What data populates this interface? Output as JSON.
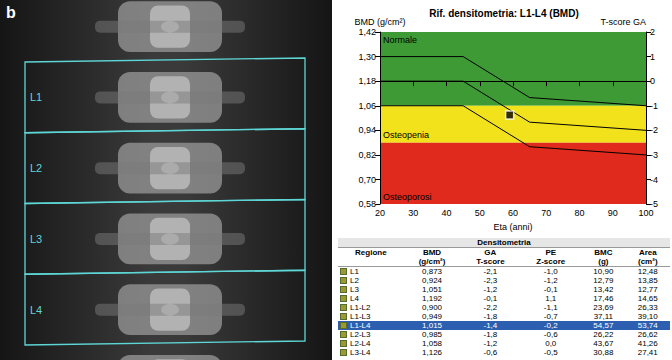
{
  "panel_label": "b",
  "xray": {
    "regions": [
      "L1",
      "L2",
      "L3",
      "L4"
    ]
  },
  "chart_data": {
    "type": "line",
    "title": "Rif. densitometria: L1-L4 (BMD)",
    "y_label": "BMD (g/cm²)",
    "y2_label": "T-score GA",
    "x_label": "Eta (anni)",
    "x": [
      20,
      45,
      65,
      100
    ],
    "xlim": [
      20,
      100
    ],
    "xticks": [
      20,
      30,
      40,
      50,
      60,
      70,
      80,
      90,
      100
    ],
    "ylim": [
      0.58,
      1.42
    ],
    "yticks": [
      {
        "value": 0.58,
        "label": "0,58"
      },
      {
        "value": 0.7,
        "label": "0,70"
      },
      {
        "value": 0.82,
        "label": "0,82"
      },
      {
        "value": 0.94,
        "label": "0,94"
      },
      {
        "value": 1.06,
        "label": "1,06"
      },
      {
        "value": 1.18,
        "label": "1,18"
      },
      {
        "value": 1.3,
        "label": "1,30"
      },
      {
        "value": 1.42,
        "label": "1,42"
      }
    ],
    "y2lim": [
      -5,
      2
    ],
    "y2ticks": [
      -5,
      -4,
      -3,
      -2,
      -1,
      0,
      1,
      2
    ],
    "grid": false,
    "bands": [
      {
        "label": "Normale",
        "from": 1.06,
        "to": 1.42,
        "color": "#3d9a35"
      },
      {
        "label": "Osteopenia",
        "from": 0.88,
        "to": 1.06,
        "color": "#f2e21c"
      },
      {
        "label": "Osteoporosi",
        "from": 0.58,
        "to": 0.88,
        "color": "#e02a1e"
      }
    ],
    "series": [
      {
        "values": [
          1.3,
          1.3,
          1.1,
          1.06
        ],
        "color": "#000000",
        "line_style": "solid"
      },
      {
        "values": [
          1.18,
          1.18,
          0.98,
          0.94
        ],
        "color": "#000000",
        "line_style": "solid"
      },
      {
        "values": [
          1.06,
          1.06,
          0.86,
          0.82
        ],
        "color": "#000000",
        "line_style": "solid"
      },
      {
        "type": "scatter",
        "x": [
          59
        ],
        "values": [
          1.015
        ],
        "color": "#000000",
        "marker": "square"
      }
    ]
  },
  "table": {
    "title": "Densitometria",
    "header": [
      [
        "Regione",
        ""
      ],
      [
        "BMD",
        "(g/cm²)"
      ],
      [
        "GA",
        "T-score"
      ],
      [
        "PE",
        "Z-score"
      ],
      [
        "BMC",
        "(g)"
      ],
      [
        "Area",
        "(cm²)"
      ]
    ],
    "rows": [
      [
        "L1",
        "0,873",
        "-2,1",
        "-1,0",
        "10,90",
        "12,48"
      ],
      [
        "L2",
        "0,924",
        "-2,3",
        "-1,2",
        "12,79",
        "13,85"
      ],
      [
        "L3",
        "1,051",
        "-1,2",
        "-0,1",
        "13,42",
        "12,77"
      ],
      [
        "L4",
        "1,192",
        "-0,1",
        "1,1",
        "17,46",
        "14,65"
      ],
      [
        "L1-L2",
        "0,900",
        "-2,2",
        "-1,1",
        "23,69",
        "26,33"
      ],
      [
        "L1-L3",
        "0,949",
        "-1,8",
        "-0,7",
        "37,11",
        "39,10"
      ],
      [
        "L1-L4",
        "1,015",
        "-1,4",
        "-0,2",
        "54,57",
        "53,74"
      ],
      [
        "L2-L3",
        "0,985",
        "-1,8",
        "-0,6",
        "26,22",
        "26,62"
      ],
      [
        "L2-L4",
        "1,058",
        "-1,2",
        "0,0",
        "43,67",
        "41,26"
      ],
      [
        "L3-L4",
        "1,126",
        "-0,6",
        "-0,5",
        "30,88",
        "27,41"
      ]
    ],
    "highlight": "L1-L4"
  }
}
